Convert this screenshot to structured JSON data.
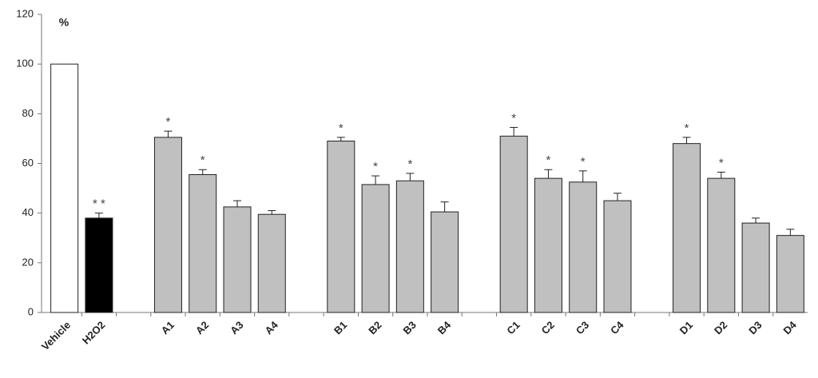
{
  "chart_data": {
    "type": "bar",
    "y_label": "%",
    "categories": [
      "Vehicle",
      "H2O2",
      null,
      "A1",
      "A2",
      "A3",
      "A4",
      null,
      "B1",
      "B2",
      "B3",
      "B4",
      null,
      "C1",
      "C2",
      "C3",
      "C4",
      null,
      "D1",
      "D2",
      "D3",
      "D4"
    ],
    "values": [
      100,
      38,
      null,
      70.5,
      55.5,
      42.5,
      39.5,
      null,
      69,
      51.5,
      53,
      40.5,
      null,
      71,
      54,
      52.5,
      45,
      null,
      68,
      54,
      36,
      31
    ],
    "errors": [
      null,
      2,
      null,
      2.5,
      2,
      2.5,
      1.5,
      null,
      1.5,
      3.5,
      3,
      4,
      null,
      3.5,
      3.5,
      4.5,
      3,
      null,
      2.5,
      2.5,
      2,
      2.5
    ],
    "significance": [
      null,
      "* *",
      null,
      "*",
      "*",
      null,
      null,
      null,
      "*",
      "*",
      "*",
      null,
      null,
      "*",
      "*",
      "*",
      null,
      null,
      "*",
      "*",
      null,
      null
    ],
    "colors": [
      "#ffffff",
      "#000000",
      null,
      "#c0c0c0",
      "#c0c0c0",
      "#c0c0c0",
      "#c0c0c0",
      null,
      "#c0c0c0",
      "#c0c0c0",
      "#c0c0c0",
      "#c0c0c0",
      null,
      "#c0c0c0",
      "#c0c0c0",
      "#c0c0c0",
      "#c0c0c0",
      null,
      "#c0c0c0",
      "#c0c0c0",
      "#c0c0c0",
      "#c0c0c0"
    ],
    "ylim": [
      0,
      120
    ],
    "yticks": [
      0,
      20,
      40,
      60,
      80,
      100,
      120
    ],
    "grid": false
  }
}
